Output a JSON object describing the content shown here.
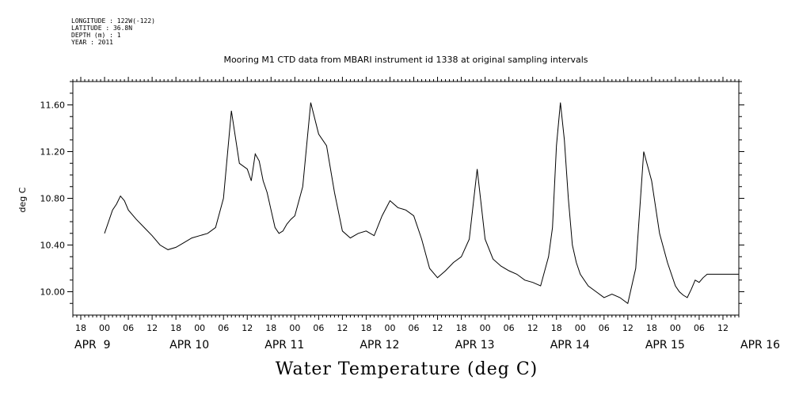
{
  "meta": {
    "longitude": "LONGITUDE : 122W(-122)",
    "latitude": "LATITUDE : 36.8N",
    "depth": "DEPTH (m) : 1",
    "year": "YEAR : 2011"
  },
  "chart_data": {
    "type": "line",
    "title": "Mooring M1 CTD data from MBARI instrument id 1338 at original sampling intervals",
    "xlabel": "Water Temperature (deg C)",
    "ylabel": "deg C",
    "ylim": [
      9.8,
      11.8
    ],
    "xlim_hours": [
      -8,
      160
    ],
    "y_ticks": [
      "10.00",
      "10.40",
      "10.80",
      "11.20",
      "11.60"
    ],
    "y_tick_values": [
      10.0,
      10.4,
      10.8,
      11.2,
      11.6
    ],
    "hour_ticks": [
      "18",
      "00",
      "06",
      "12",
      "18",
      "00",
      "06",
      "12",
      "18",
      "00",
      "06",
      "12",
      "18",
      "00",
      "06",
      "12",
      "18",
      "00",
      "06",
      "12",
      "18",
      "00",
      "06",
      "12",
      "18",
      "00",
      "06",
      "12",
      "18",
      "00",
      "06",
      "12"
    ],
    "hour_tick_values": [
      -6,
      0,
      6,
      12,
      18,
      24,
      30,
      36,
      42,
      48,
      54,
      60,
      66,
      72,
      78,
      84,
      90,
      96,
      102,
      108,
      114,
      120,
      126,
      132,
      138,
      144,
      150,
      156,
      162,
      168,
      174,
      180
    ],
    "day_labels": [
      "APR  9",
      "APR 10",
      "APR 11",
      "APR 12",
      "APR 13",
      "APR 14",
      "APR 15",
      "APR 16"
    ],
    "day_label_values": [
      -8,
      16,
      40,
      64,
      88,
      112,
      136,
      160
    ],
    "series": [
      {
        "color": "#000000",
        "x": [
          0,
          1,
          2,
          3,
          4,
          5,
          6,
          8,
          10,
          12,
          14,
          16,
          18,
          20,
          22,
          24,
          26,
          28,
          30,
          32,
          34,
          36,
          37,
          38,
          39,
          40,
          41,
          42,
          43,
          44,
          45,
          46,
          47,
          48,
          50,
          52,
          54,
          56,
          58,
          60,
          62,
          64,
          66,
          68,
          70,
          72,
          74,
          76,
          78,
          80,
          82,
          84,
          86,
          88,
          90,
          92,
          94,
          96,
          98,
          100,
          102,
          104,
          106,
          108,
          110,
          112,
          113,
          114,
          115,
          116,
          117,
          118,
          119,
          120,
          122,
          124,
          126,
          128,
          130,
          132,
          134,
          136,
          138,
          140,
          142,
          144,
          145,
          146,
          147,
          148,
          149,
          150,
          151,
          152,
          154,
          156,
          158,
          160,
          162,
          164,
          166,
          168
        ],
        "y": [
          10.5,
          10.6,
          10.7,
          10.75,
          10.82,
          10.78,
          10.7,
          10.62,
          10.55,
          10.48,
          10.4,
          10.36,
          10.38,
          10.42,
          10.46,
          10.48,
          10.5,
          10.55,
          10.8,
          11.55,
          11.1,
          11.05,
          10.95,
          11.18,
          11.12,
          10.95,
          10.85,
          10.7,
          10.55,
          10.5,
          10.52,
          10.58,
          10.62,
          10.65,
          10.9,
          11.62,
          11.35,
          11.25,
          10.85,
          10.52,
          10.46,
          10.5,
          10.52,
          10.48,
          10.65,
          10.78,
          10.72,
          10.7,
          10.65,
          10.45,
          10.2,
          10.12,
          10.18,
          10.25,
          10.3,
          10.45,
          11.05,
          10.45,
          10.28,
          10.22,
          10.18,
          10.15,
          10.1,
          10.08,
          10.05,
          10.3,
          10.55,
          11.25,
          11.62,
          11.3,
          10.8,
          10.4,
          10.25,
          10.15,
          10.05,
          10.0,
          9.95,
          9.98,
          9.95,
          9.9,
          10.2,
          11.2,
          10.95,
          10.5,
          10.25,
          10.05,
          10.0,
          9.97,
          9.95,
          10.02,
          10.1,
          10.08,
          10.12,
          10.15,
          10.15,
          10.15,
          10.15,
          10.15,
          10.15,
          10.15,
          10.15,
          10.15
        ]
      }
    ]
  }
}
